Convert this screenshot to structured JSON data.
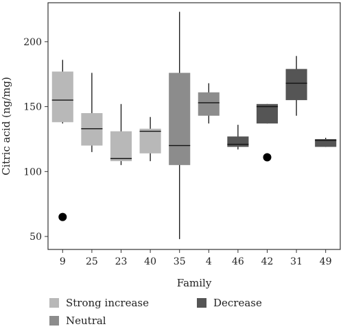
{
  "chart_data": {
    "type": "box",
    "xlabel": "Family",
    "ylabel": "Citric acid (ng/mg)",
    "ylim": [
      40,
      230
    ],
    "yticks": [
      50,
      100,
      150,
      200
    ],
    "categories": [
      "9",
      "25",
      "23",
      "40",
      "35",
      "4",
      "46",
      "42",
      "31",
      "49"
    ],
    "groups": [
      {
        "name": "Strong increase",
        "color": "#b8b8b8"
      },
      {
        "name": "Neutral",
        "color": "#8c8c8c"
      },
      {
        "name": "Decrease",
        "color": "#555555"
      }
    ],
    "boxes": [
      {
        "family": "9",
        "group": "Strong increase",
        "min": 137,
        "q1": 138,
        "median": 155,
        "q3": 177,
        "max": 186,
        "outliers": [
          65
        ]
      },
      {
        "family": "25",
        "group": "Strong increase",
        "min": 115,
        "q1": 120,
        "median": 133,
        "q3": 145,
        "max": 176,
        "outliers": []
      },
      {
        "family": "23",
        "group": "Strong increase",
        "min": 105,
        "q1": 108,
        "median": 110,
        "q3": 131,
        "max": 152,
        "outliers": []
      },
      {
        "family": "40",
        "group": "Strong increase",
        "min": 108,
        "q1": 114,
        "median": 131,
        "q3": 133,
        "max": 142,
        "outliers": []
      },
      {
        "family": "35",
        "group": "Neutral",
        "min": 48,
        "q1": 105,
        "median": 120,
        "q3": 176,
        "max": 223,
        "outliers": []
      },
      {
        "family": "4",
        "group": "Neutral",
        "min": 137,
        "q1": 143,
        "median": 153,
        "q3": 161,
        "max": 168,
        "outliers": []
      },
      {
        "family": "46",
        "group": "Decrease",
        "min": 117,
        "q1": 119,
        "median": 121,
        "q3": 127,
        "max": 136,
        "outliers": []
      },
      {
        "family": "42",
        "group": "Decrease",
        "min": 137,
        "q1": 137,
        "median": 150,
        "q3": 152,
        "max": 152,
        "outliers": [
          111
        ]
      },
      {
        "family": "31",
        "group": "Decrease",
        "min": 143,
        "q1": 155,
        "median": 168,
        "q3": 179,
        "max": 189,
        "outliers": []
      },
      {
        "family": "49",
        "group": "Decrease",
        "min": 119,
        "q1": 119,
        "median": 124,
        "q3": 125,
        "max": 126,
        "outliers": []
      }
    ],
    "legend": {
      "placement": "bottom"
    }
  }
}
